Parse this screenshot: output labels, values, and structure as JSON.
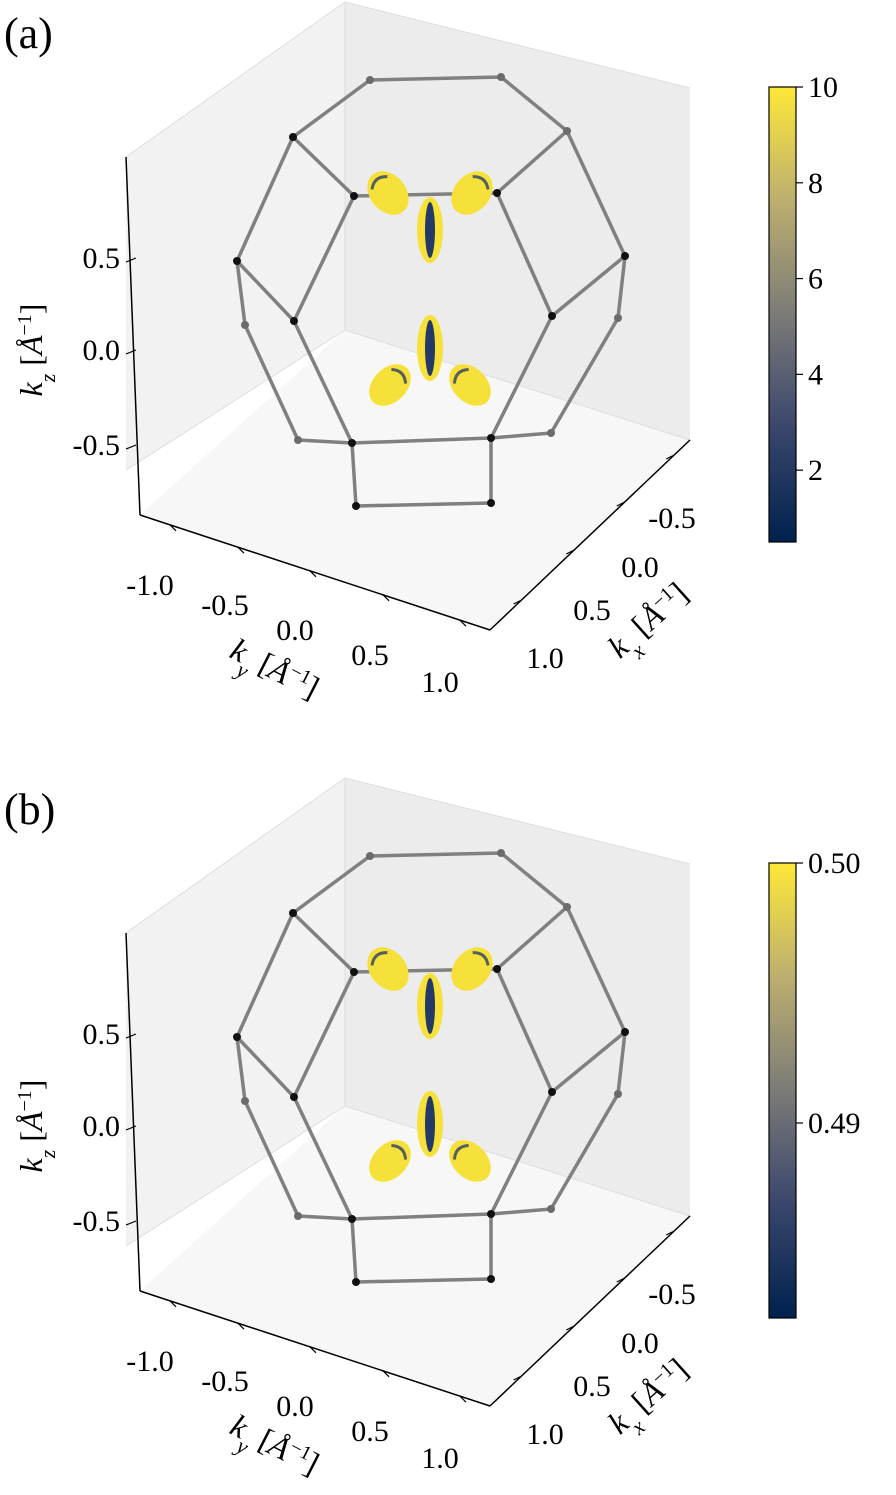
{
  "chart_data": [
    {
      "type": "scatter",
      "subtype": "3d-brillouin-zone-fermi-surface",
      "panel_label": "(a)",
      "xlabel": "k_x [Å^{-1}]",
      "ylabel": "k_y [Å^{-1}]",
      "zlabel": "k_z [Å^{-1}]",
      "x_ticks": [
        "-0.5",
        "0.0",
        "0.5",
        "1.0"
      ],
      "y_ticks": [
        "-1.0",
        "-0.5",
        "0.0",
        "0.5",
        "1.0"
      ],
      "z_ticks": [
        "-0.5",
        "0.0",
        "0.5"
      ],
      "colorbar": {
        "colormap": "cividis",
        "range": [
          0.5,
          10
        ],
        "ticks": [
          "2",
          "4",
          "6",
          "8",
          "10"
        ],
        "tick_values": [
          2,
          4,
          6,
          8,
          10
        ]
      },
      "bz_edge_color": "#808080",
      "pocket_color": "#f6e13a"
    },
    {
      "type": "scatter",
      "subtype": "3d-brillouin-zone-fermi-surface",
      "panel_label": "(b)",
      "xlabel": "k_x [Å^{-1}]",
      "ylabel": "k_y [Å^{-1}]",
      "zlabel": "k_z [Å^{-1}]",
      "x_ticks": [
        "-0.5",
        "0.0",
        "0.5",
        "1.0"
      ],
      "y_ticks": [
        "-1.0",
        "-0.5",
        "0.0",
        "0.5",
        "1.0"
      ],
      "z_ticks": [
        "-0.5",
        "0.0",
        "0.5"
      ],
      "colorbar": {
        "colormap": "cividis",
        "range": [
          0.4825,
          0.5
        ],
        "ticks": [
          "0.49",
          "0.50"
        ],
        "tick_values": [
          0.49,
          0.5
        ]
      },
      "bz_edge_color": "#808080",
      "pocket_color": "#f6e13a"
    }
  ],
  "labels": {
    "a": "(a)",
    "b": "(b)",
    "kx": "k",
    "kx_sub": "x",
    "ky": "k",
    "ky_sub": "y",
    "kz": "k",
    "kz_sub": "z",
    "unit_open": "[",
    "unit_A": "Å",
    "unit_exp": "−1",
    "unit_close": "]"
  }
}
